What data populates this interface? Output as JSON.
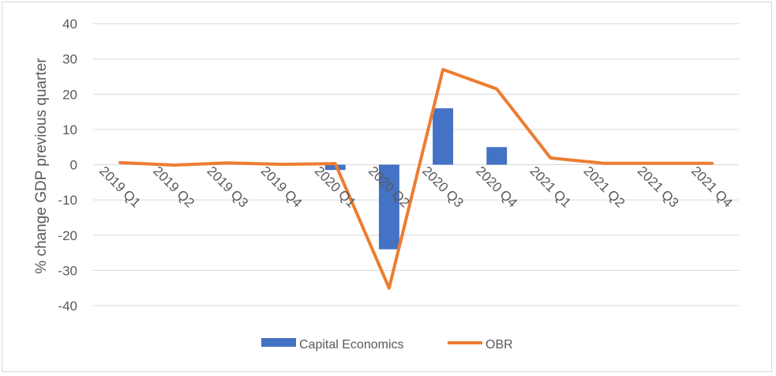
{
  "chart_data": {
    "type": "bar+line",
    "title": "",
    "xlabel": "",
    "ylabel": "% change GDP previous quarter",
    "ylim": [
      -40,
      40
    ],
    "yticks": [
      -40,
      -30,
      -20,
      -10,
      0,
      10,
      20,
      30,
      40
    ],
    "ytick_labels": [
      "-40",
      "-30",
      "-20",
      "-10",
      "0",
      "10",
      "20",
      "30",
      "40"
    ],
    "grid": true,
    "legend": "bottom",
    "categories": [
      "2019 Q1",
      "2019 Q2",
      "2019 Q3",
      "2019 Q4",
      "2020 Q1",
      "2020 Q2",
      "2020 Q3",
      "2020 Q4",
      "2021 Q1",
      "2021 Q2",
      "2021 Q3",
      "2021 Q4"
    ],
    "series": [
      {
        "name": "Capital Economics",
        "type": "bar",
        "color": "#4472C4",
        "values": [
          null,
          null,
          null,
          null,
          -1.5,
          -24,
          16,
          5,
          null,
          null,
          null,
          null
        ]
      },
      {
        "name": "OBR",
        "type": "line",
        "color": "#ED7D31",
        "values": [
          0.6,
          -0.1,
          0.5,
          0.1,
          0.3,
          -35,
          27,
          21.5,
          1.9,
          0.4,
          0.4,
          0.4
        ]
      }
    ]
  }
}
